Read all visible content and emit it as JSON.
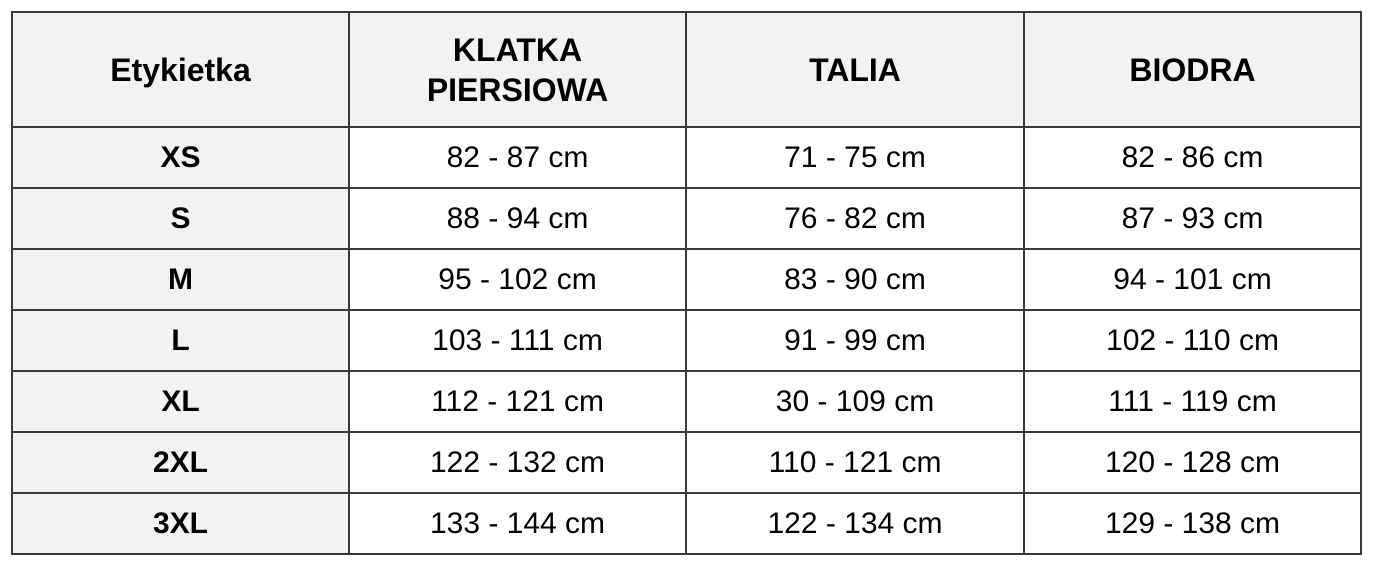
{
  "table": {
    "headers": {
      "label": "Etykietka",
      "chest_line1": "KLATKA",
      "chest_line2": "PIERSIOWA",
      "waist": "TALIA",
      "hips": "BIODRA"
    },
    "rows": [
      {
        "label": "XS",
        "chest": "82 - 87 cm",
        "waist": "71 - 75 cm",
        "hips": "82 - 86 cm"
      },
      {
        "label": "S",
        "chest": "88 - 94 cm",
        "waist": "76 - 82 cm",
        "hips": "87 - 93 cm"
      },
      {
        "label": "M",
        "chest": "95 - 102 cm",
        "waist": "83 - 90 cm",
        "hips": "94 - 101 cm"
      },
      {
        "label": "L",
        "chest": "103 - 111 cm",
        "waist": "91 - 99 cm",
        "hips": "102 - 110 cm"
      },
      {
        "label": "XL",
        "chest": "112 - 121 cm",
        "waist": "30 - 109 cm",
        "hips": "111 - 119 cm"
      },
      {
        "label": "2XL",
        "chest": "122 - 132 cm",
        "waist": "110 - 121 cm",
        "hips": "120 - 128 cm"
      },
      {
        "label": "3XL",
        "chest": "133 - 144 cm",
        "waist": "122 - 134 cm",
        "hips": "129 - 138 cm"
      }
    ]
  },
  "colors": {
    "header_background": "#f2f2f2",
    "label_background": "#f2f2f2",
    "value_background": "#ffffff",
    "border": "#3a3a3a",
    "text": "#000000"
  }
}
